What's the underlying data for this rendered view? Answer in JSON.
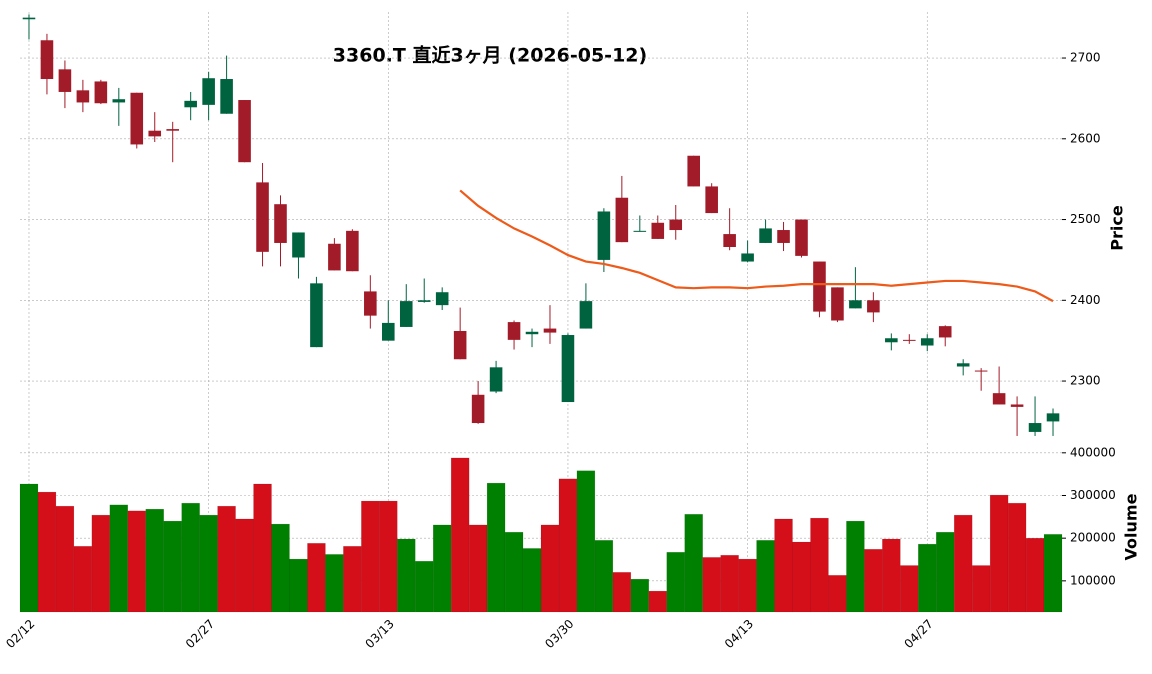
{
  "chart_data": {
    "type": "candlestick",
    "title": "3360.T 直近3ヶ月 (2026-05-12)",
    "y_label": "Price",
    "y2_label": "Volume",
    "categories": [
      "02/12",
      null,
      null,
      null,
      null,
      null,
      null,
      null,
      null,
      null,
      "02/27",
      null,
      null,
      null,
      null,
      null,
      null,
      null,
      null,
      null,
      "03/13",
      null,
      null,
      null,
      null,
      null,
      null,
      null,
      null,
      null,
      "03/30",
      null,
      null,
      null,
      null,
      null,
      null,
      null,
      null,
      null,
      "04/13",
      null,
      null,
      null,
      null,
      null,
      null,
      null,
      null,
      null,
      "04/27",
      null,
      null,
      null,
      null,
      null,
      null,
      null
    ],
    "open": [
      2748,
      2722,
      2686,
      2660,
      2671,
      2645,
      2657,
      2610,
      2612,
      2639,
      2642,
      2631,
      2648,
      2546,
      2519,
      2453,
      2342,
      2470,
      2486,
      2411,
      2350,
      2367,
      2398,
      2394,
      2362,
      2283,
      2287,
      2373,
      2358,
      2365,
      2274,
      2365,
      2450,
      2527,
      2485,
      2496,
      2500,
      2579,
      2541,
      2482,
      2448,
      2471,
      2487,
      2500,
      2448,
      2416,
      2390,
      2400,
      2348,
      2351,
      2344,
      2368,
      2318,
      2313,
      2285,
      2271,
      2237,
      2250
    ],
    "high": [
      2754,
      2730,
      2697,
      2673,
      2673,
      2663,
      2657,
      2633,
      2621,
      2658,
      2683,
      2703,
      2648,
      2570,
      2530,
      2484,
      2429,
      2477,
      2488,
      2431,
      2400,
      2420,
      2427,
      2416,
      2391,
      2300,
      2325,
      2375,
      2365,
      2394,
      2359,
      2421,
      2514,
      2554,
      2505,
      2505,
      2518,
      2579,
      2545,
      2514,
      2474,
      2500,
      2497,
      2500,
      2448,
      2416,
      2441,
      2410,
      2359,
      2358,
      2358,
      2369,
      2327,
      2316,
      2318,
      2281,
      2281,
      2266
    ],
    "low": [
      2723,
      2655,
      2638,
      2633,
      2643,
      2616,
      2588,
      2596,
      2571,
      2623,
      2623,
      2631,
      2571,
      2442,
      2442,
      2427,
      2342,
      2437,
      2436,
      2365,
      2350,
      2367,
      2397,
      2388,
      2327,
      2247,
      2285,
      2339,
      2342,
      2346,
      2274,
      2365,
      2435,
      2472,
      2485,
      2476,
      2475,
      2541,
      2508,
      2462,
      2447,
      2471,
      2461,
      2453,
      2379,
      2373,
      2390,
      2373,
      2338,
      2346,
      2337,
      2343,
      2307,
      2288,
      2271,
      2232,
      2232,
      2232
    ],
    "close": [
      2750,
      2674,
      2658,
      2645,
      2644,
      2649,
      2593,
      2603,
      2610,
      2647,
      2675,
      2674,
      2571,
      2460,
      2471,
      2484,
      2421,
      2437,
      2436,
      2381,
      2372,
      2399,
      2400,
      2410,
      2327,
      2248,
      2317,
      2351,
      2361,
      2360,
      2357,
      2399,
      2510,
      2472,
      2486,
      2476,
      2487,
      2541,
      2508,
      2466,
      2458,
      2489,
      2471,
      2455,
      2386,
      2375,
      2400,
      2385,
      2353,
      2350,
      2353,
      2354,
      2322,
      2312,
      2271,
      2268,
      2248,
      2260
    ],
    "volume": [
      327000,
      308000,
      275000,
      181000,
      254000,
      278000,
      264000,
      268000,
      240000,
      282000,
      254000,
      275000,
      245000,
      327000,
      233000,
      151000,
      188000,
      162000,
      181000,
      287000,
      287000,
      198000,
      146000,
      231000,
      388000,
      231000,
      329000,
      214000,
      176000,
      231000,
      339000,
      358000,
      195000,
      120000,
      104000,
      76000,
      167000,
      256000,
      155000,
      160000,
      151000,
      195000,
      245000,
      191000,
      247000,
      113000,
      240000,
      174000,
      198000,
      136000,
      186000,
      214000,
      254000,
      136000,
      301000,
      282000,
      200000,
      209000
    ],
    "ma": {
      "color": "#ee5a1a",
      "values": [
        null,
        null,
        null,
        null,
        null,
        null,
        null,
        null,
        null,
        null,
        null,
        null,
        null,
        null,
        null,
        null,
        null,
        null,
        null,
        null,
        null,
        null,
        null,
        null,
        2536,
        2517,
        2502,
        2489,
        2479,
        2468,
        2456,
        2448,
        2445,
        2440,
        2434,
        2425,
        2416,
        2415,
        2416,
        2416,
        2415,
        2417,
        2418,
        2420,
        2420,
        2420,
        2420,
        2420,
        2418,
        2420,
        2422,
        2424,
        2424,
        2422,
        2420,
        2417,
        2411,
        2399
      ]
    },
    "up_color": "#006340",
    "down_color": "#a21b28",
    "volume_up_color": "#008000",
    "volume_down_color": "#d40f1a",
    "ylim": [
      2227,
      2757
    ],
    "yticks": [
      2300,
      2400,
      2500,
      2600,
      2700
    ],
    "y2lim": [
      27000,
      423000
    ],
    "y2ticks": [
      100000,
      200000,
      300000,
      400000
    ],
    "grid": true
  }
}
